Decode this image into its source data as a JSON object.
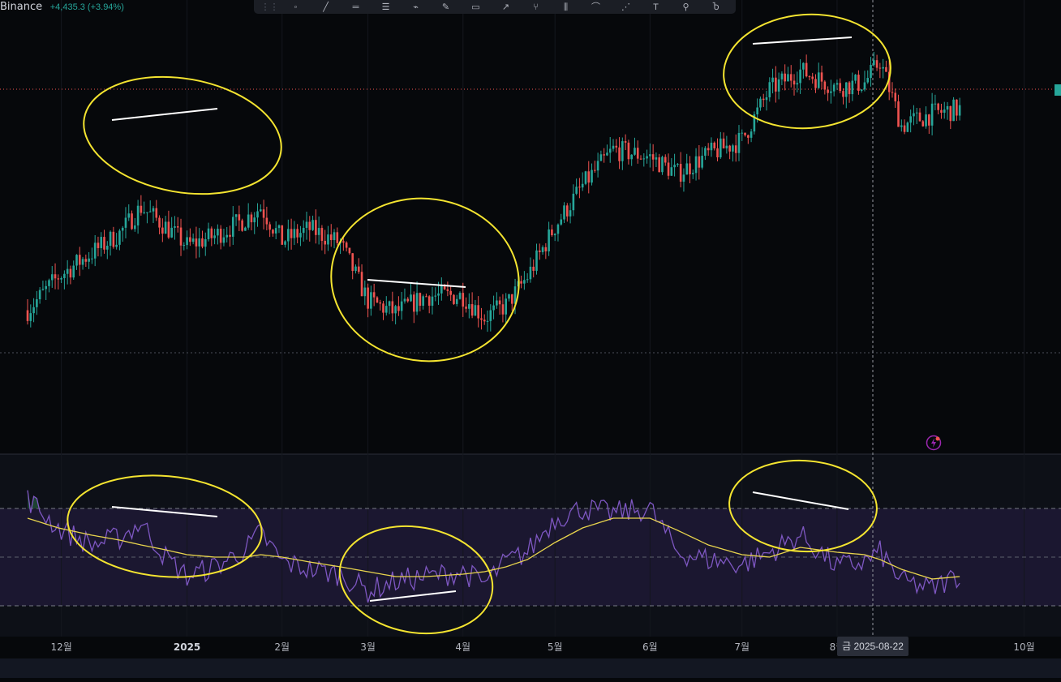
{
  "header": {
    "symbol": "Binance",
    "change": "+4,435.3 (+3.94%)"
  },
  "toolbar": {
    "tools": [
      "drag-handle",
      "cursor-tool",
      "trend-line-tool",
      "parallel-channel-tool",
      "regression-tool",
      "fib-tool",
      "brush-tool",
      "rectangle-tool",
      "arrow-tool",
      "pitchfork-tool",
      "candle-pattern-tool",
      "path-tool",
      "xabcd-tool",
      "text-tool",
      "pin-tool",
      "magnet-tool"
    ]
  },
  "colors": {
    "up": "#26a69a",
    "down": "#ef5350",
    "rsi_line": "#7e57c2",
    "rsi_ma": "#e8d44d",
    "annotation": "#f4e430",
    "divergence_line": "#ffffff",
    "rsi_band": "#1f1a33"
  },
  "x_axis": {
    "labels": [
      "12월",
      "2025",
      "2월",
      "3월",
      "4월",
      "5월",
      "6월",
      "7월",
      "8월",
      "10월"
    ],
    "crosshair_date": "금 2025-08-22"
  },
  "chart_data": [
    {
      "type": "candlestick",
      "title": "",
      "description_points": "Price path over Nov 2024 – Sep 2025 (relative units, no y-axis shown)",
      "x": [
        "2024-11-10",
        "2024-11-20",
        "2024-12-01",
        "2024-12-10",
        "2024-12-17",
        "2024-12-25",
        "2025-01-01",
        "2025-01-10",
        "2025-01-20",
        "2025-01-25",
        "2025-02-01",
        "2025-02-10",
        "2025-02-20",
        "2025-03-01",
        "2025-03-10",
        "2025-03-20",
        "2025-04-01",
        "2025-04-08",
        "2025-04-15",
        "2025-04-22",
        "2025-05-01",
        "2025-05-10",
        "2025-05-20",
        "2025-06-01",
        "2025-06-10",
        "2025-06-20",
        "2025-07-01",
        "2025-07-10",
        "2025-07-20",
        "2025-08-01",
        "2025-08-10",
        "2025-08-15",
        "2025-08-22",
        "2025-09-01",
        "2025-09-10"
      ],
      "y": [
        58,
        72,
        82,
        90,
        101,
        93,
        85,
        89,
        96,
        101,
        87,
        92,
        86,
        62,
        57,
        64,
        64,
        55,
        60,
        72,
        93,
        110,
        125,
        122,
        115,
        123,
        129,
        150,
        158,
        151,
        153,
        162,
        135,
        140,
        142
      ]
    },
    {
      "type": "line",
      "title": "",
      "x": [
        "2024-11-10",
        "2024-11-20",
        "2024-12-01",
        "2024-12-10",
        "2024-12-17",
        "2024-12-25",
        "2025-01-01",
        "2025-01-10",
        "2025-01-20",
        "2025-01-25",
        "2025-02-01",
        "2025-02-10",
        "2025-02-20",
        "2025-03-01",
        "2025-03-10",
        "2025-03-20",
        "2025-04-01",
        "2025-04-08",
        "2025-04-15",
        "2025-04-22",
        "2025-05-01",
        "2025-05-10",
        "2025-05-20",
        "2025-06-01",
        "2025-06-10",
        "2025-06-20",
        "2025-07-01",
        "2025-07-10",
        "2025-07-20",
        "2025-08-01",
        "2025-08-10",
        "2025-08-15",
        "2025-08-22",
        "2025-09-01",
        "2025-09-10"
      ],
      "series": [
        {
          "values": [
            74,
            62,
            55,
            58,
            64,
            50,
            42,
            46,
            53,
            60,
            48,
            45,
            43,
            36,
            40,
            42,
            44,
            39,
            48,
            52,
            66,
            70,
            68,
            70,
            52,
            49,
            47,
            52,
            59,
            46,
            48,
            52,
            40,
            37,
            43
          ]
        },
        {
          "values": [
            66,
            62,
            59,
            57,
            55,
            53,
            51,
            50,
            50,
            51,
            50,
            48,
            46,
            44,
            42,
            42,
            43,
            44,
            46,
            49,
            56,
            62,
            66,
            66,
            61,
            55,
            51,
            50,
            54,
            52,
            51,
            49,
            45,
            41,
            42
          ]
        }
      ],
      "ylim": [
        20,
        80
      ],
      "bands": [
        70,
        50,
        30
      ]
    }
  ]
}
